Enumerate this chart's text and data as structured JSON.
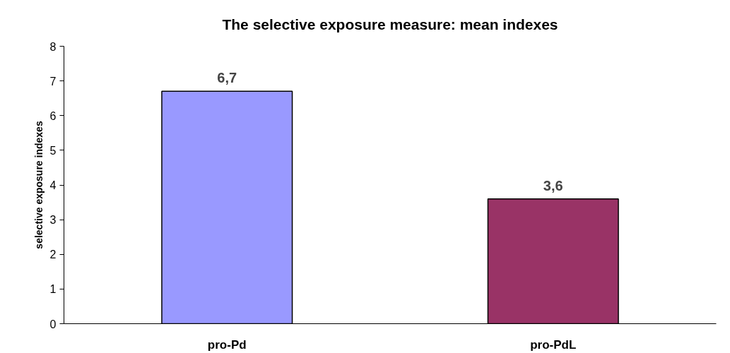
{
  "chart_data": {
    "type": "bar",
    "title": "The selective exposure measure: mean indexes",
    "ylabel": "selective exposure indexes",
    "categories": [
      "pro-Pd",
      "pro-PdL"
    ],
    "values": [
      6.7,
      3.6
    ],
    "colors": [
      "#9999ff",
      "#993366"
    ],
    "value_labels": [
      "6,7",
      "3,6"
    ],
    "ylim": [
      0,
      8
    ],
    "yticks": [
      0,
      1,
      2,
      3,
      4,
      5,
      6,
      7,
      8
    ],
    "grid": false
  }
}
